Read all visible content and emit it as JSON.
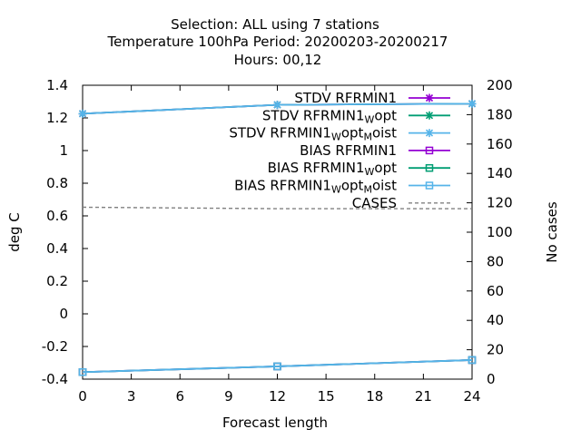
{
  "header": {
    "line1": "Selection: ALL using     7 stations",
    "line2": "Temperature 100hPa   Period: 20200203-20200217",
    "line3": "Hours:  00,12"
  },
  "chart_data": {
    "type": "line",
    "title": "Selection: ALL using     7 stations\nTemperature 100hPa   Period: 20200203-20200217\nHours:  00,12",
    "xlabel": "Forecast length",
    "ylabel": "deg C",
    "y2label": "No cases",
    "xlim": [
      0,
      24
    ],
    "ylim": [
      -0.4,
      1.4
    ],
    "y2lim": [
      0,
      200
    ],
    "xticks": [
      "0",
      "3",
      "6",
      "9",
      "12",
      "15",
      "18",
      "21",
      "24"
    ],
    "yticks": [
      "-0.4",
      "-0.2",
      "0",
      "0.2",
      "0.4",
      "0.6",
      "0.8",
      "1",
      "1.2",
      "1.4"
    ],
    "y2ticks": [
      "0",
      "20",
      "40",
      "60",
      "80",
      "100",
      "120",
      "140",
      "160",
      "180",
      "200"
    ],
    "grid": false,
    "legend_position": "top-right",
    "x": [
      0,
      12,
      24
    ],
    "series": [
      {
        "name": "STDV RFRMIN1",
        "legend_main": "STDV RFRMIN1",
        "legend_sub": "",
        "legend_tail": "",
        "legend_sub2": "",
        "legend_tail2": "",
        "axis": "y",
        "color": "#9400d3",
        "marker": "star",
        "dash": false,
        "values": [
          1.226,
          1.28,
          1.287
        ]
      },
      {
        "name": "STDV RFRMIN1_W opt",
        "legend_main": "STDV RFRMIN1",
        "legend_sub": "W",
        "legend_tail": "opt",
        "legend_sub2": "",
        "legend_tail2": "",
        "axis": "y",
        "color": "#009e73",
        "marker": "star",
        "dash": false,
        "values": [
          1.226,
          1.28,
          1.287
        ]
      },
      {
        "name": "STDV RFRMIN1_W opt_M oist",
        "legend_main": "STDV RFRMIN1",
        "legend_sub": "W",
        "legend_tail": "opt",
        "legend_sub2": "M",
        "legend_tail2": "oist",
        "axis": "y",
        "color": "#56b4e9",
        "marker": "star",
        "dash": false,
        "values": [
          1.226,
          1.28,
          1.287
        ]
      },
      {
        "name": "BIAS RFRMIN1",
        "legend_main": "BIAS RFRMIN1",
        "legend_sub": "",
        "legend_tail": "",
        "legend_sub2": "",
        "legend_tail2": "",
        "axis": "y",
        "color": "#9400d3",
        "marker": "square",
        "dash": false,
        "values": [
          -0.357,
          -0.322,
          -0.283
        ]
      },
      {
        "name": "BIAS RFRMIN1_W opt",
        "legend_main": "BIAS RFRMIN1",
        "legend_sub": "W",
        "legend_tail": "opt",
        "legend_sub2": "",
        "legend_tail2": "",
        "axis": "y",
        "color": "#009e73",
        "marker": "square",
        "dash": false,
        "values": [
          -0.357,
          -0.322,
          -0.283
        ]
      },
      {
        "name": "BIAS RFRMIN1_W opt_M oist",
        "legend_main": "BIAS RFRMIN1",
        "legend_sub": "W",
        "legend_tail": "opt",
        "legend_sub2": "M",
        "legend_tail2": "oist",
        "axis": "y",
        "color": "#56b4e9",
        "marker": "square",
        "dash": false,
        "values": [
          -0.357,
          -0.322,
          -0.283
        ]
      },
      {
        "name": "CASES",
        "legend_main": "CASES",
        "legend_sub": "",
        "legend_tail": "",
        "legend_sub2": "",
        "legend_tail2": "",
        "axis": "y2",
        "color": "#808080",
        "marker": "none",
        "dash": true,
        "values": [
          117,
          116,
          116
        ]
      }
    ]
  }
}
